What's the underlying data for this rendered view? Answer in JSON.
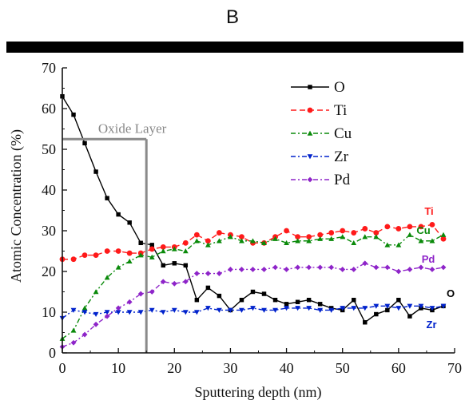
{
  "panel_label": "B",
  "chart_data": {
    "type": "line",
    "xlabel": "Sputtering depth (nm)",
    "ylabel": "Atomic Concentration (%)",
    "xlim": [
      0,
      70
    ],
    "ylim": [
      0,
      70
    ],
    "xticks": [
      0,
      10,
      20,
      30,
      40,
      50,
      60,
      70
    ],
    "yticks": [
      0,
      10,
      20,
      30,
      40,
      50,
      60,
      70
    ],
    "grid": false,
    "legend_position": "top-right",
    "annotation": {
      "text": "Oxide Layer",
      "x_range": [
        0,
        15
      ],
      "y": 52.5
    },
    "series": [
      {
        "name": "O",
        "end_label": "O",
        "color": "#000000",
        "dash": "",
        "marker": "square",
        "x": [
          0,
          2,
          4,
          6,
          8,
          10,
          12,
          14,
          16,
          18,
          20,
          22,
          24,
          26,
          28,
          30,
          32,
          34,
          36,
          38,
          40,
          42,
          44,
          46,
          48,
          50,
          52,
          54,
          56,
          58,
          60,
          62,
          64,
          66,
          68
        ],
        "y": [
          63,
          58.5,
          51.5,
          44.5,
          38,
          34,
          32,
          27,
          26.5,
          21.5,
          22,
          21.5,
          13,
          16,
          14,
          10.5,
          13,
          15,
          14.5,
          13,
          12,
          12.5,
          13,
          12,
          11,
          10.5,
          13,
          7.5,
          9.5,
          10.5,
          13,
          9,
          11,
          10.5,
          11.5
        ]
      },
      {
        "name": "Ti",
        "end_label": "Ti",
        "color": "#ff1a1a",
        "dash": "7,4",
        "marker": "circle",
        "x": [
          0,
          2,
          4,
          6,
          8,
          10,
          12,
          14,
          16,
          18,
          20,
          22,
          24,
          26,
          28,
          30,
          32,
          34,
          36,
          38,
          40,
          42,
          44,
          46,
          48,
          50,
          52,
          54,
          56,
          58,
          60,
          62,
          64,
          66,
          68
        ],
        "y": [
          23,
          23,
          24,
          24,
          25,
          25,
          24.5,
          24.5,
          25.5,
          26,
          26,
          27,
          29,
          27.5,
          29.5,
          29,
          28.5,
          27,
          27,
          28.5,
          30,
          28.5,
          28.5,
          29,
          29.5,
          30,
          29.5,
          30.5,
          29.5,
          31,
          30.5,
          31,
          31,
          31.5,
          28
        ]
      },
      {
        "name": "Cu",
        "end_label": "Cu",
        "color": "#0a8a0a",
        "dash": "6,3,2,3",
        "marker": "triangle-up",
        "x": [
          0,
          2,
          4,
          6,
          8,
          10,
          12,
          14,
          16,
          18,
          20,
          22,
          24,
          26,
          28,
          30,
          32,
          34,
          36,
          38,
          40,
          42,
          44,
          46,
          48,
          50,
          52,
          54,
          56,
          58,
          60,
          62,
          64,
          66,
          68
        ],
        "y": [
          3.5,
          5.5,
          11,
          15,
          18.5,
          21,
          22.5,
          24,
          23.5,
          25,
          25.5,
          25,
          27.5,
          26.5,
          27.5,
          28.5,
          27.5,
          27.5,
          27,
          28,
          27,
          27.5,
          27.5,
          28,
          28,
          28.5,
          27,
          28.5,
          28.5,
          26.5,
          26.5,
          29,
          27.5,
          27.5,
          29
        ]
      },
      {
        "name": "Zr",
        "end_label": "Zr",
        "color": "#0022cc",
        "dash": "6,3,2,3",
        "marker": "triangle-down",
        "x": [
          0,
          2,
          4,
          6,
          8,
          10,
          12,
          14,
          16,
          18,
          20,
          22,
          24,
          26,
          28,
          30,
          32,
          34,
          36,
          38,
          40,
          42,
          44,
          46,
          48,
          50,
          52,
          54,
          56,
          58,
          60,
          62,
          64,
          66,
          68
        ],
        "y": [
          8.5,
          10.5,
          10,
          9.5,
          10,
          10,
          10,
          10,
          10.5,
          10,
          10.5,
          10,
          10,
          11,
          10.5,
          10.5,
          10.5,
          11,
          10.5,
          10.5,
          11,
          11,
          11,
          10.5,
          10.5,
          11,
          11,
          11,
          11.5,
          11.5,
          11,
          11.5,
          11.5,
          11,
          11.5
        ]
      },
      {
        "name": "Pd",
        "end_label": "Pd",
        "color": "#8e24c9",
        "dash": "6,3,2,3",
        "marker": "diamond",
        "x": [
          0,
          2,
          4,
          6,
          8,
          10,
          12,
          14,
          16,
          18,
          20,
          22,
          24,
          26,
          28,
          30,
          32,
          34,
          36,
          38,
          40,
          42,
          44,
          46,
          48,
          50,
          52,
          54,
          56,
          58,
          60,
          62,
          64,
          66,
          68
        ],
        "y": [
          1.5,
          2.5,
          4.5,
          7,
          9,
          11,
          12.5,
          14.5,
          15,
          17.5,
          17,
          17.5,
          19.5,
          19.5,
          19.5,
          20.5,
          20.5,
          20.5,
          20.5,
          21,
          20.5,
          21,
          21,
          21,
          21,
          20.5,
          20.5,
          22,
          21,
          21,
          20,
          20.5,
          21,
          20.5,
          21
        ]
      }
    ]
  }
}
